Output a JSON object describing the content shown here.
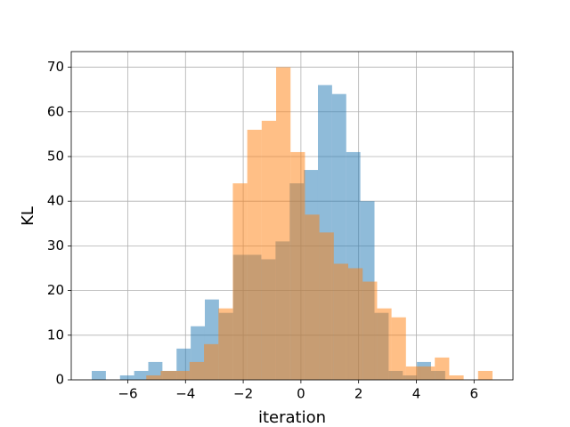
{
  "chart_data": {
    "type": "histogram",
    "xlabel": "iteration",
    "ylabel": "KL",
    "series": [
      {
        "color": "#1f77b4",
        "alpha": 0.5,
        "bins": [
          -7.25,
          -6.76,
          -6.27,
          -5.78,
          -5.29,
          -4.8,
          -4.31,
          -3.82,
          -3.33,
          -2.84,
          -2.35,
          -1.86,
          -1.37,
          -0.88,
          -0.39,
          0.1,
          0.59,
          1.08,
          1.57,
          2.06,
          2.55,
          3.04,
          3.53,
          4.02,
          4.51,
          5.0
        ],
        "values": [
          2,
          0,
          1,
          2,
          4,
          2,
          7,
          12,
          18,
          15,
          28,
          28,
          27,
          31,
          44,
          47,
          66,
          64,
          51,
          40,
          15,
          2,
          1,
          4,
          2
        ]
      },
      {
        "color": "#ff7f0e",
        "alpha": 0.5,
        "bins": [
          -5.36,
          -4.86,
          -4.36,
          -3.86,
          -3.36,
          -2.86,
          -2.36,
          -1.86,
          -1.36,
          -0.86,
          -0.36,
          0.14,
          0.64,
          1.14,
          1.64,
          2.14,
          2.64,
          3.14,
          3.64,
          4.14,
          4.64,
          5.14,
          5.64,
          6.14,
          6.64
        ],
        "values": [
          1,
          2,
          2,
          4,
          8,
          16,
          44,
          56,
          58,
          70,
          51,
          37,
          33,
          26,
          25,
          22,
          16,
          14,
          3,
          3,
          5,
          1,
          0,
          2
        ]
      }
    ],
    "xlim": [
      -7.96,
      7.35
    ],
    "ylim": [
      0,
      73.5
    ],
    "xticks": [
      {
        "value": -6,
        "label": "−6"
      },
      {
        "value": -4,
        "label": "−4"
      },
      {
        "value": -2,
        "label": "−2"
      },
      0,
      2,
      4,
      6
    ],
    "yticks": [
      0,
      10,
      20,
      30,
      40,
      50,
      60,
      70
    ],
    "grid": true
  }
}
